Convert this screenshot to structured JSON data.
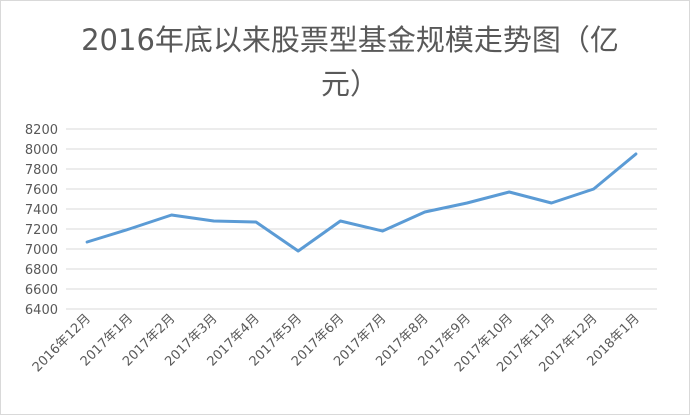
{
  "chart_data": {
    "type": "line",
    "title": "2016年底以来股票型基金规模走势图（亿元）",
    "categories": [
      "2016年12月",
      "2017年1月",
      "2017年2月",
      "2017年3月",
      "2017年4月",
      "2017年5月",
      "2017年6月",
      "2017年7月",
      "2017年8月",
      "2017年9月",
      "2017年10月",
      "2017年11月",
      "2017年12月",
      "2018年1月"
    ],
    "values": [
      7070,
      7200,
      7340,
      7280,
      7270,
      6980,
      7280,
      7180,
      7370,
      7460,
      7570,
      7460,
      7600,
      7950
    ],
    "color": "#5b9bd5",
    "ylim": [
      6400,
      8200
    ],
    "yticks": [
      6400,
      6600,
      6800,
      7000,
      7200,
      7400,
      7600,
      7800,
      8000,
      8200
    ],
    "grid": true
  }
}
